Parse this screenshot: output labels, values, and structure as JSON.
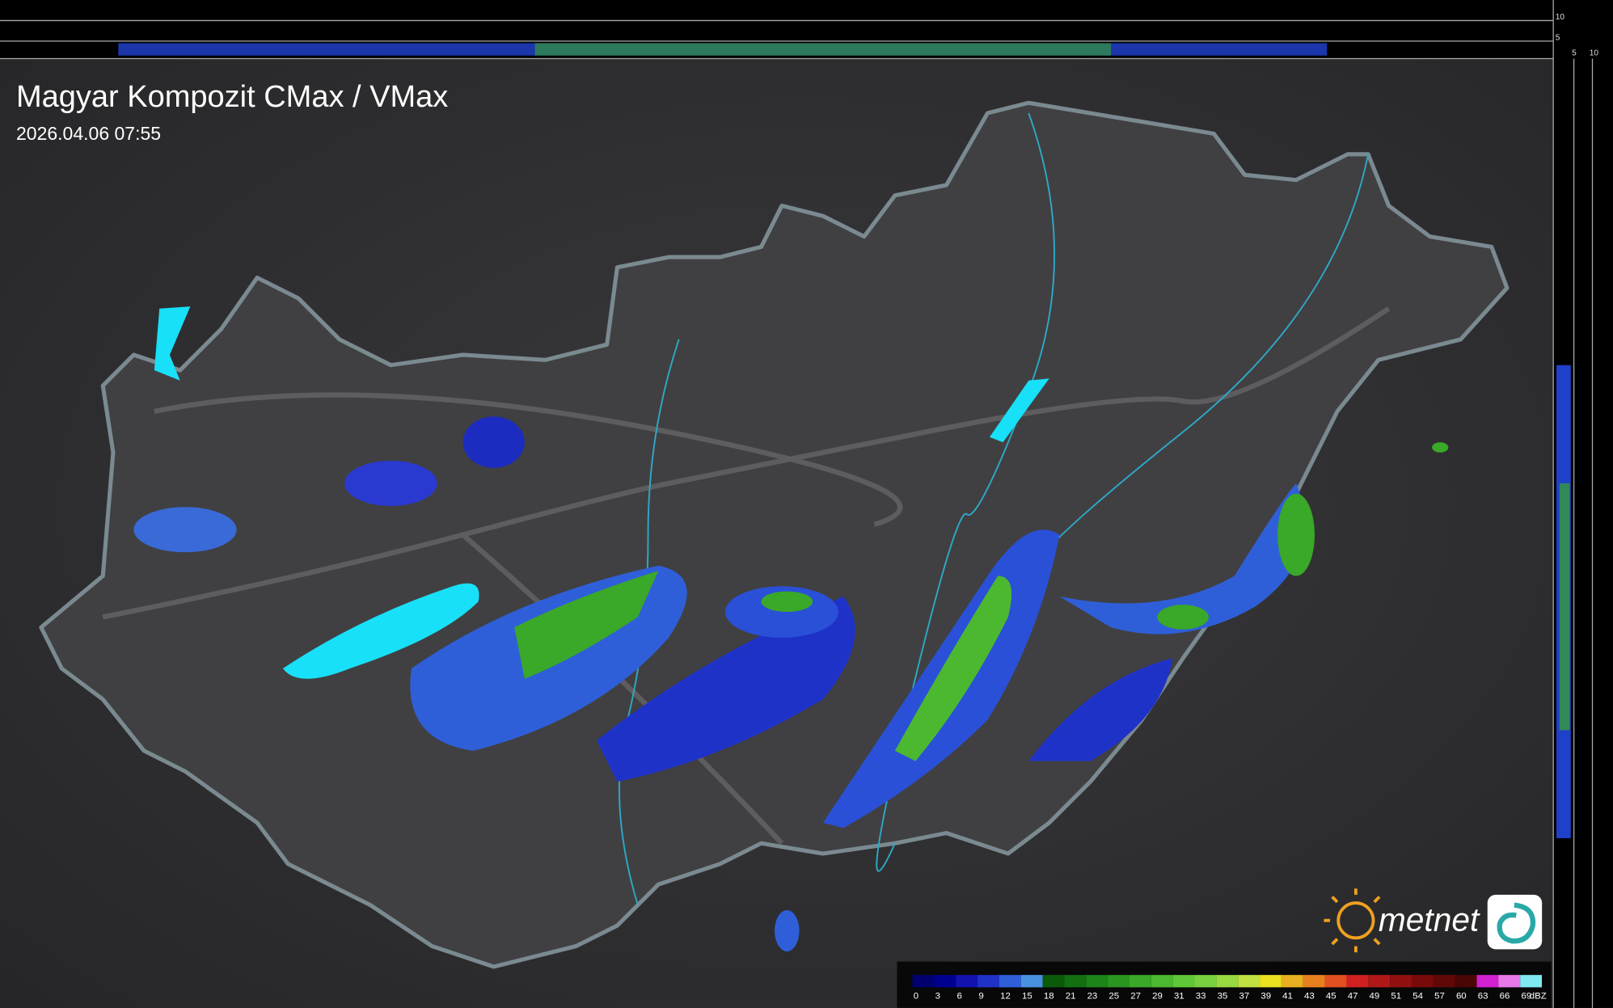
{
  "header": {
    "title": "Magyar Kompozit CMax / VMax",
    "timestamp": "2026.04.06 07:55"
  },
  "profile_axes": {
    "top": [
      10,
      5
    ],
    "right": [
      5,
      10
    ]
  },
  "logo": {
    "text": "metnet"
  },
  "legend": {
    "unit": "dBZ",
    "items": [
      {
        "value": 0,
        "color": "#000070"
      },
      {
        "value": 3,
        "color": "#00008f"
      },
      {
        "value": 6,
        "color": "#1212b0"
      },
      {
        "value": 9,
        "color": "#1f32c8"
      },
      {
        "value": 12,
        "color": "#2f5fd8"
      },
      {
        "value": 15,
        "color": "#4a90e0"
      },
      {
        "value": 18,
        "color": "#0a5a0a"
      },
      {
        "value": 21,
        "color": "#127012"
      },
      {
        "value": 23,
        "color": "#1c8418"
      },
      {
        "value": 25,
        "color": "#2a9620"
      },
      {
        "value": 27,
        "color": "#3aa828"
      },
      {
        "value": 29,
        "color": "#4cb830"
      },
      {
        "value": 31,
        "color": "#60c838"
      },
      {
        "value": 33,
        "color": "#78d040"
      },
      {
        "value": 35,
        "color": "#98d840"
      },
      {
        "value": 37,
        "color": "#c0e040"
      },
      {
        "value": 39,
        "color": "#e8e020"
      },
      {
        "value": 41,
        "color": "#e8b020"
      },
      {
        "value": 43,
        "color": "#e88020"
      },
      {
        "value": 45,
        "color": "#e05020"
      },
      {
        "value": 47,
        "color": "#d02020"
      },
      {
        "value": 49,
        "color": "#b01818"
      },
      {
        "value": 51,
        "color": "#901010"
      },
      {
        "value": 54,
        "color": "#7a0a0a"
      },
      {
        "value": 57,
        "color": "#600808"
      },
      {
        "value": 60,
        "color": "#4a0505"
      },
      {
        "value": 63,
        "color": "#d020d0"
      },
      {
        "value": 66,
        "color": "#e878e8"
      },
      {
        "value": 69,
        "color": "#80e8f0"
      }
    ]
  }
}
